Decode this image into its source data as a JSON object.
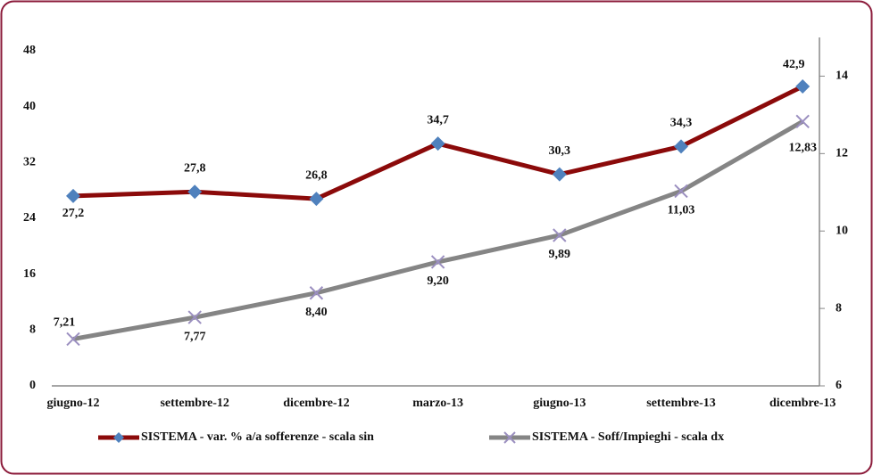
{
  "chart_data": {
    "type": "line",
    "categories": [
      "giugno-12",
      "settembre-12",
      "dicembre-12",
      "marzo-13",
      "giugno-13",
      "settembre-13",
      "dicembre-13"
    ],
    "series": [
      {
        "name": "SISTEMA - var. % a/a sofferenze - scala sin",
        "color": "#8b0a0a",
        "marker_color": "#4f81bd",
        "values": [
          27.2,
          27.8,
          26.8,
          34.7,
          30.3,
          34.3,
          42.9
        ],
        "value_labels": [
          "27,2",
          "27,8",
          "26,8",
          "34,7",
          "30,3",
          "34,3",
          "42,9"
        ]
      },
      {
        "name": "SISTEMA - Soff/Impieghi - scala dx",
        "color": "#858585",
        "marker_color": "#9b8fc0",
        "axis": "y2",
        "values": [
          7.21,
          7.77,
          8.4,
          9.2,
          9.89,
          11.03,
          12.83
        ],
        "value_labels": [
          "7,21",
          "7,77",
          "8,40",
          "9,20",
          "9,89",
          "11,03",
          "12,83"
        ]
      }
    ],
    "ylim": [
      0,
      48
    ],
    "yticks": [
      0,
      8,
      16,
      24,
      32,
      40,
      48
    ],
    "y2lim": [
      6,
      15
    ],
    "y2ticks": [
      6,
      8,
      10,
      12,
      14
    ],
    "legend": "bottom"
  }
}
